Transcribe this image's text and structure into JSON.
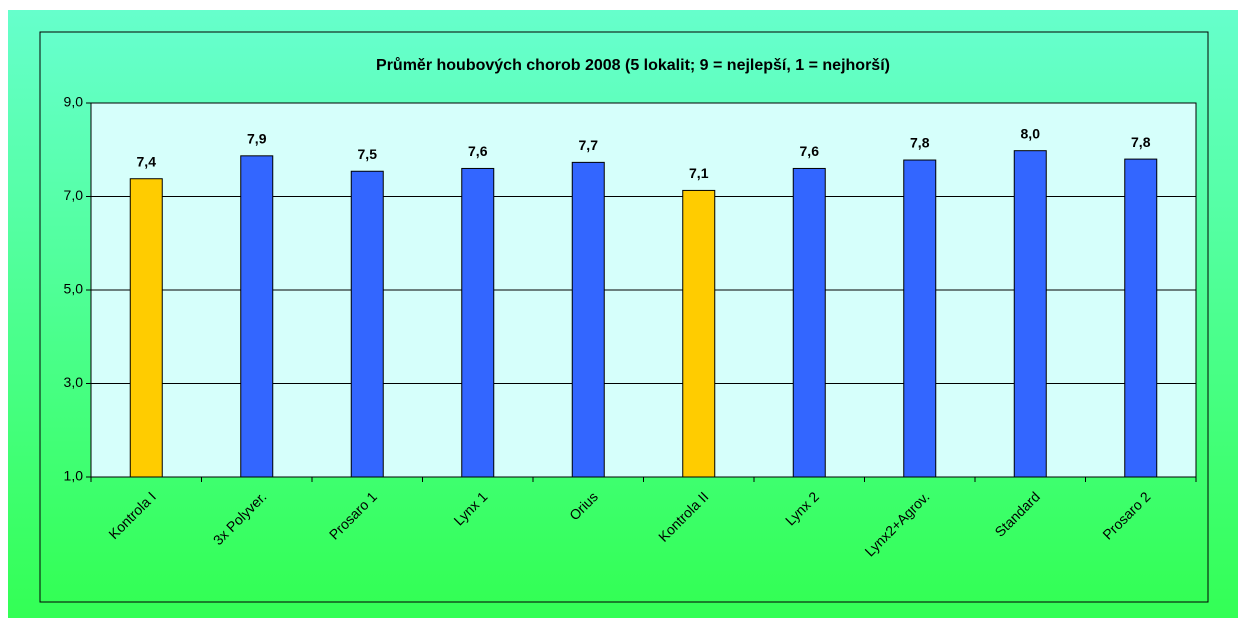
{
  "chart_data": {
    "type": "bar",
    "title": "Průměr houbových chorob 2008 (5 lokalit; 9 = nejlepší, 1 = nejhorší)",
    "categories": [
      "Kontrola I",
      "3x Polyver.",
      "Prosaro 1",
      "Lynx 1",
      "Orius",
      "Kontrola II",
      "Lynx 2",
      "Lynx2+Agrov.",
      "Standard",
      "Prosaro 2"
    ],
    "values": [
      7.38,
      7.87,
      7.54,
      7.6,
      7.73,
      7.13,
      7.6,
      7.78,
      7.98,
      7.8
    ],
    "value_labels": [
      "7,4",
      "7,9",
      "7,5",
      "7,6",
      "7,7",
      "7,1",
      "7,6",
      "7,8",
      "8,0",
      "7,8"
    ],
    "colors": [
      "#ffcc00",
      "#3366ff",
      "#3366ff",
      "#3366ff",
      "#3366ff",
      "#ffcc00",
      "#3366ff",
      "#3366ff",
      "#3366ff",
      "#3366ff"
    ],
    "ylim": [
      1,
      9
    ],
    "yticks": [
      {
        "value": 1,
        "label": "1,0"
      },
      {
        "value": 3,
        "label": "3,0"
      },
      {
        "value": 5,
        "label": "5,0"
      },
      {
        "value": 7,
        "label": "7,0"
      },
      {
        "value": 9,
        "label": "9,0"
      }
    ],
    "grid": true
  }
}
